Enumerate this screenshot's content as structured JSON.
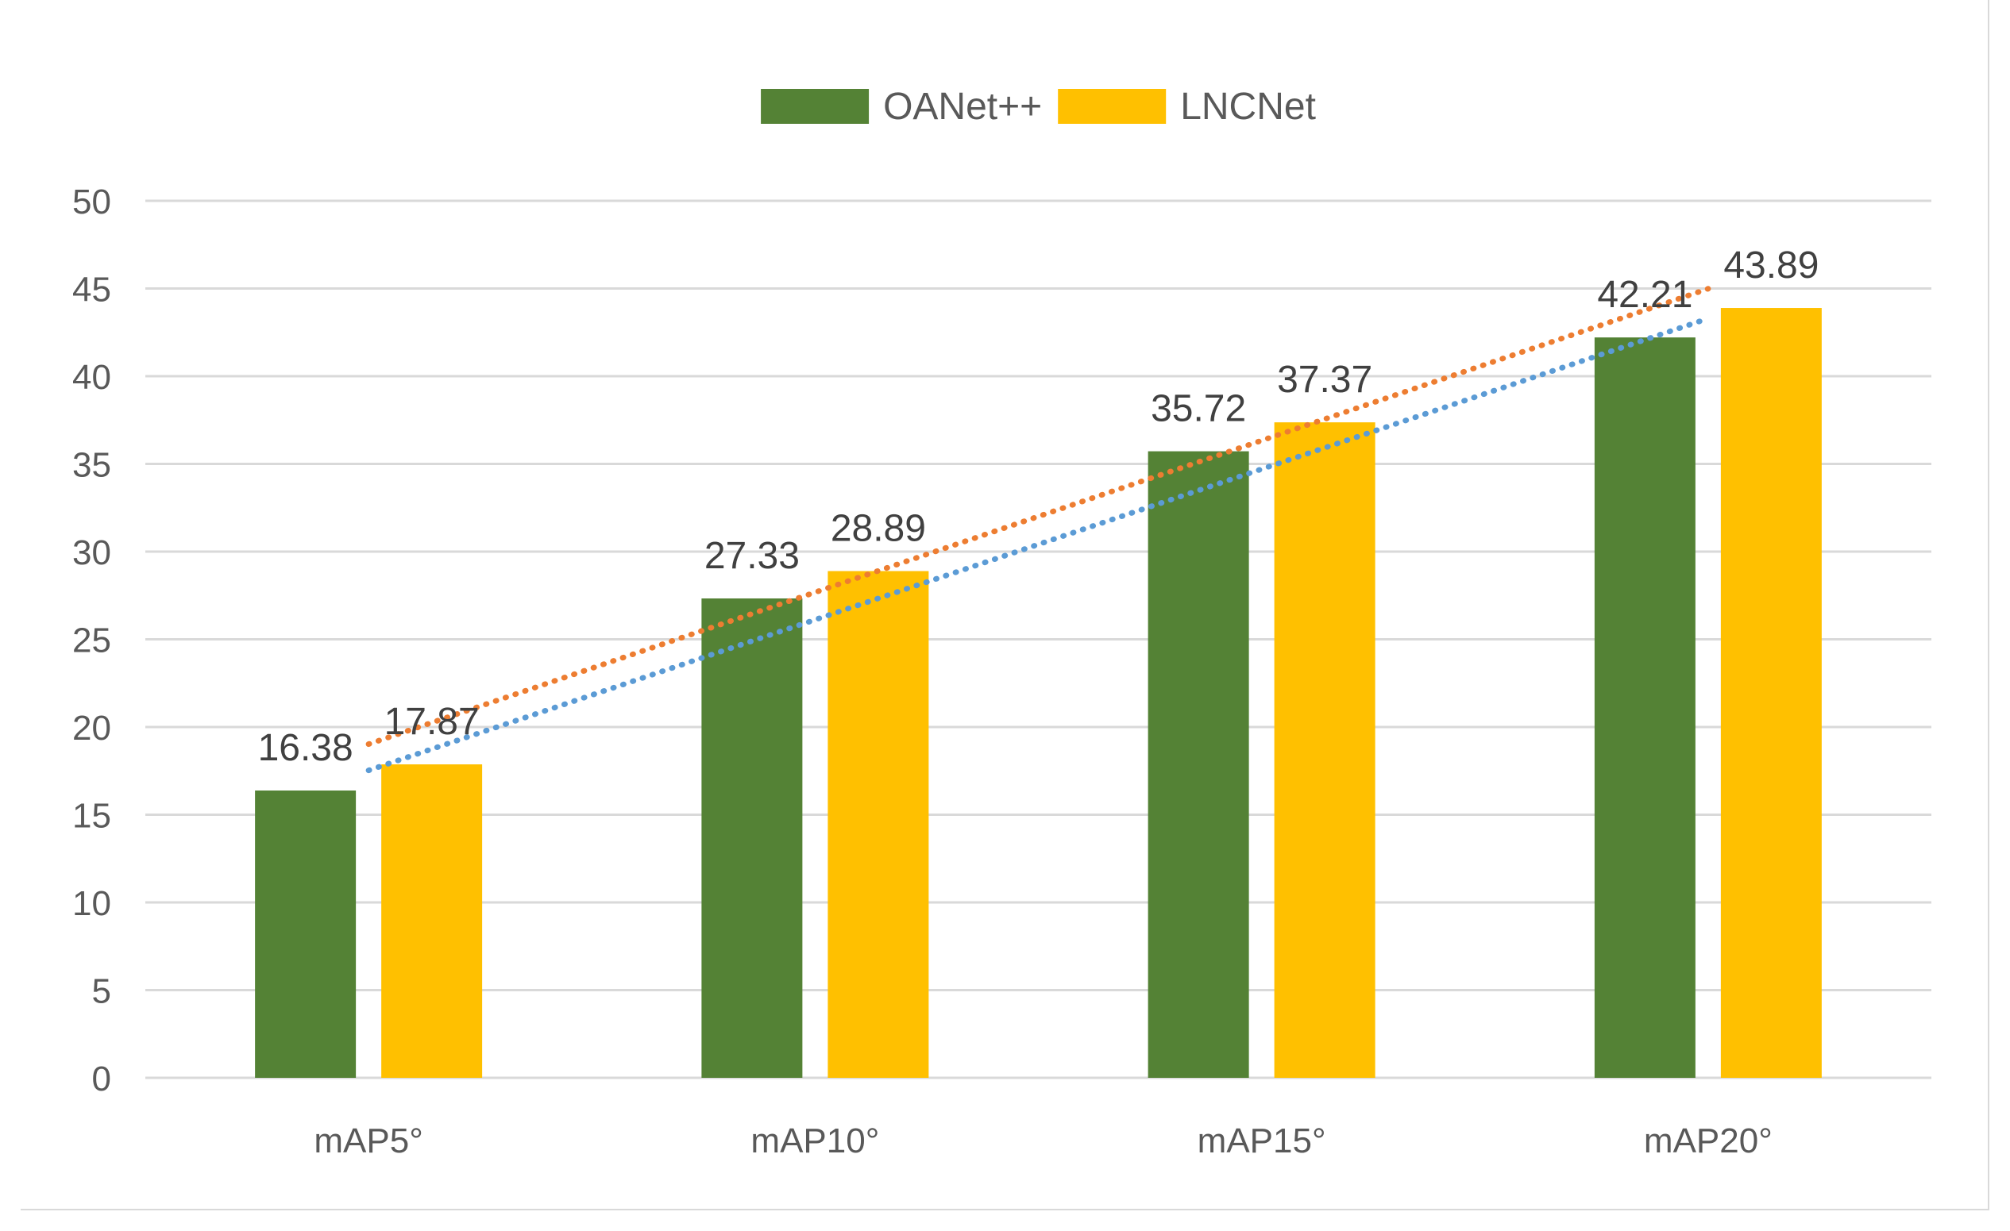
{
  "chart_data": {
    "type": "bar",
    "title": "",
    "xlabel": "",
    "ylabel": "",
    "categories": [
      "mAP5°",
      "mAP10°",
      "mAP15°",
      "mAP20°"
    ],
    "series": [
      {
        "name": "OANet++",
        "color": "#548235",
        "values": [
          16.38,
          27.33,
          35.72,
          42.21
        ],
        "labels": [
          "16.38",
          "27.33",
          "35.72",
          "42.21"
        ]
      },
      {
        "name": "LNCNet",
        "color": "#ffc000",
        "values": [
          17.87,
          28.89,
          37.37,
          43.89
        ],
        "labels": [
          "17.87",
          "28.89",
          "37.37",
          "43.89"
        ]
      }
    ],
    "trendlines": [
      {
        "series": "OANet++",
        "type": "linear",
        "style": "dotted",
        "color": "#5b9bd5"
      },
      {
        "series": "LNCNet",
        "type": "linear",
        "style": "dotted",
        "color": "#ed7d31"
      }
    ],
    "ylim": [
      0,
      50
    ],
    "yticks": [
      0,
      5,
      10,
      15,
      20,
      25,
      30,
      35,
      40,
      45,
      50
    ],
    "grid": true,
    "legend_position": "top-center"
  }
}
